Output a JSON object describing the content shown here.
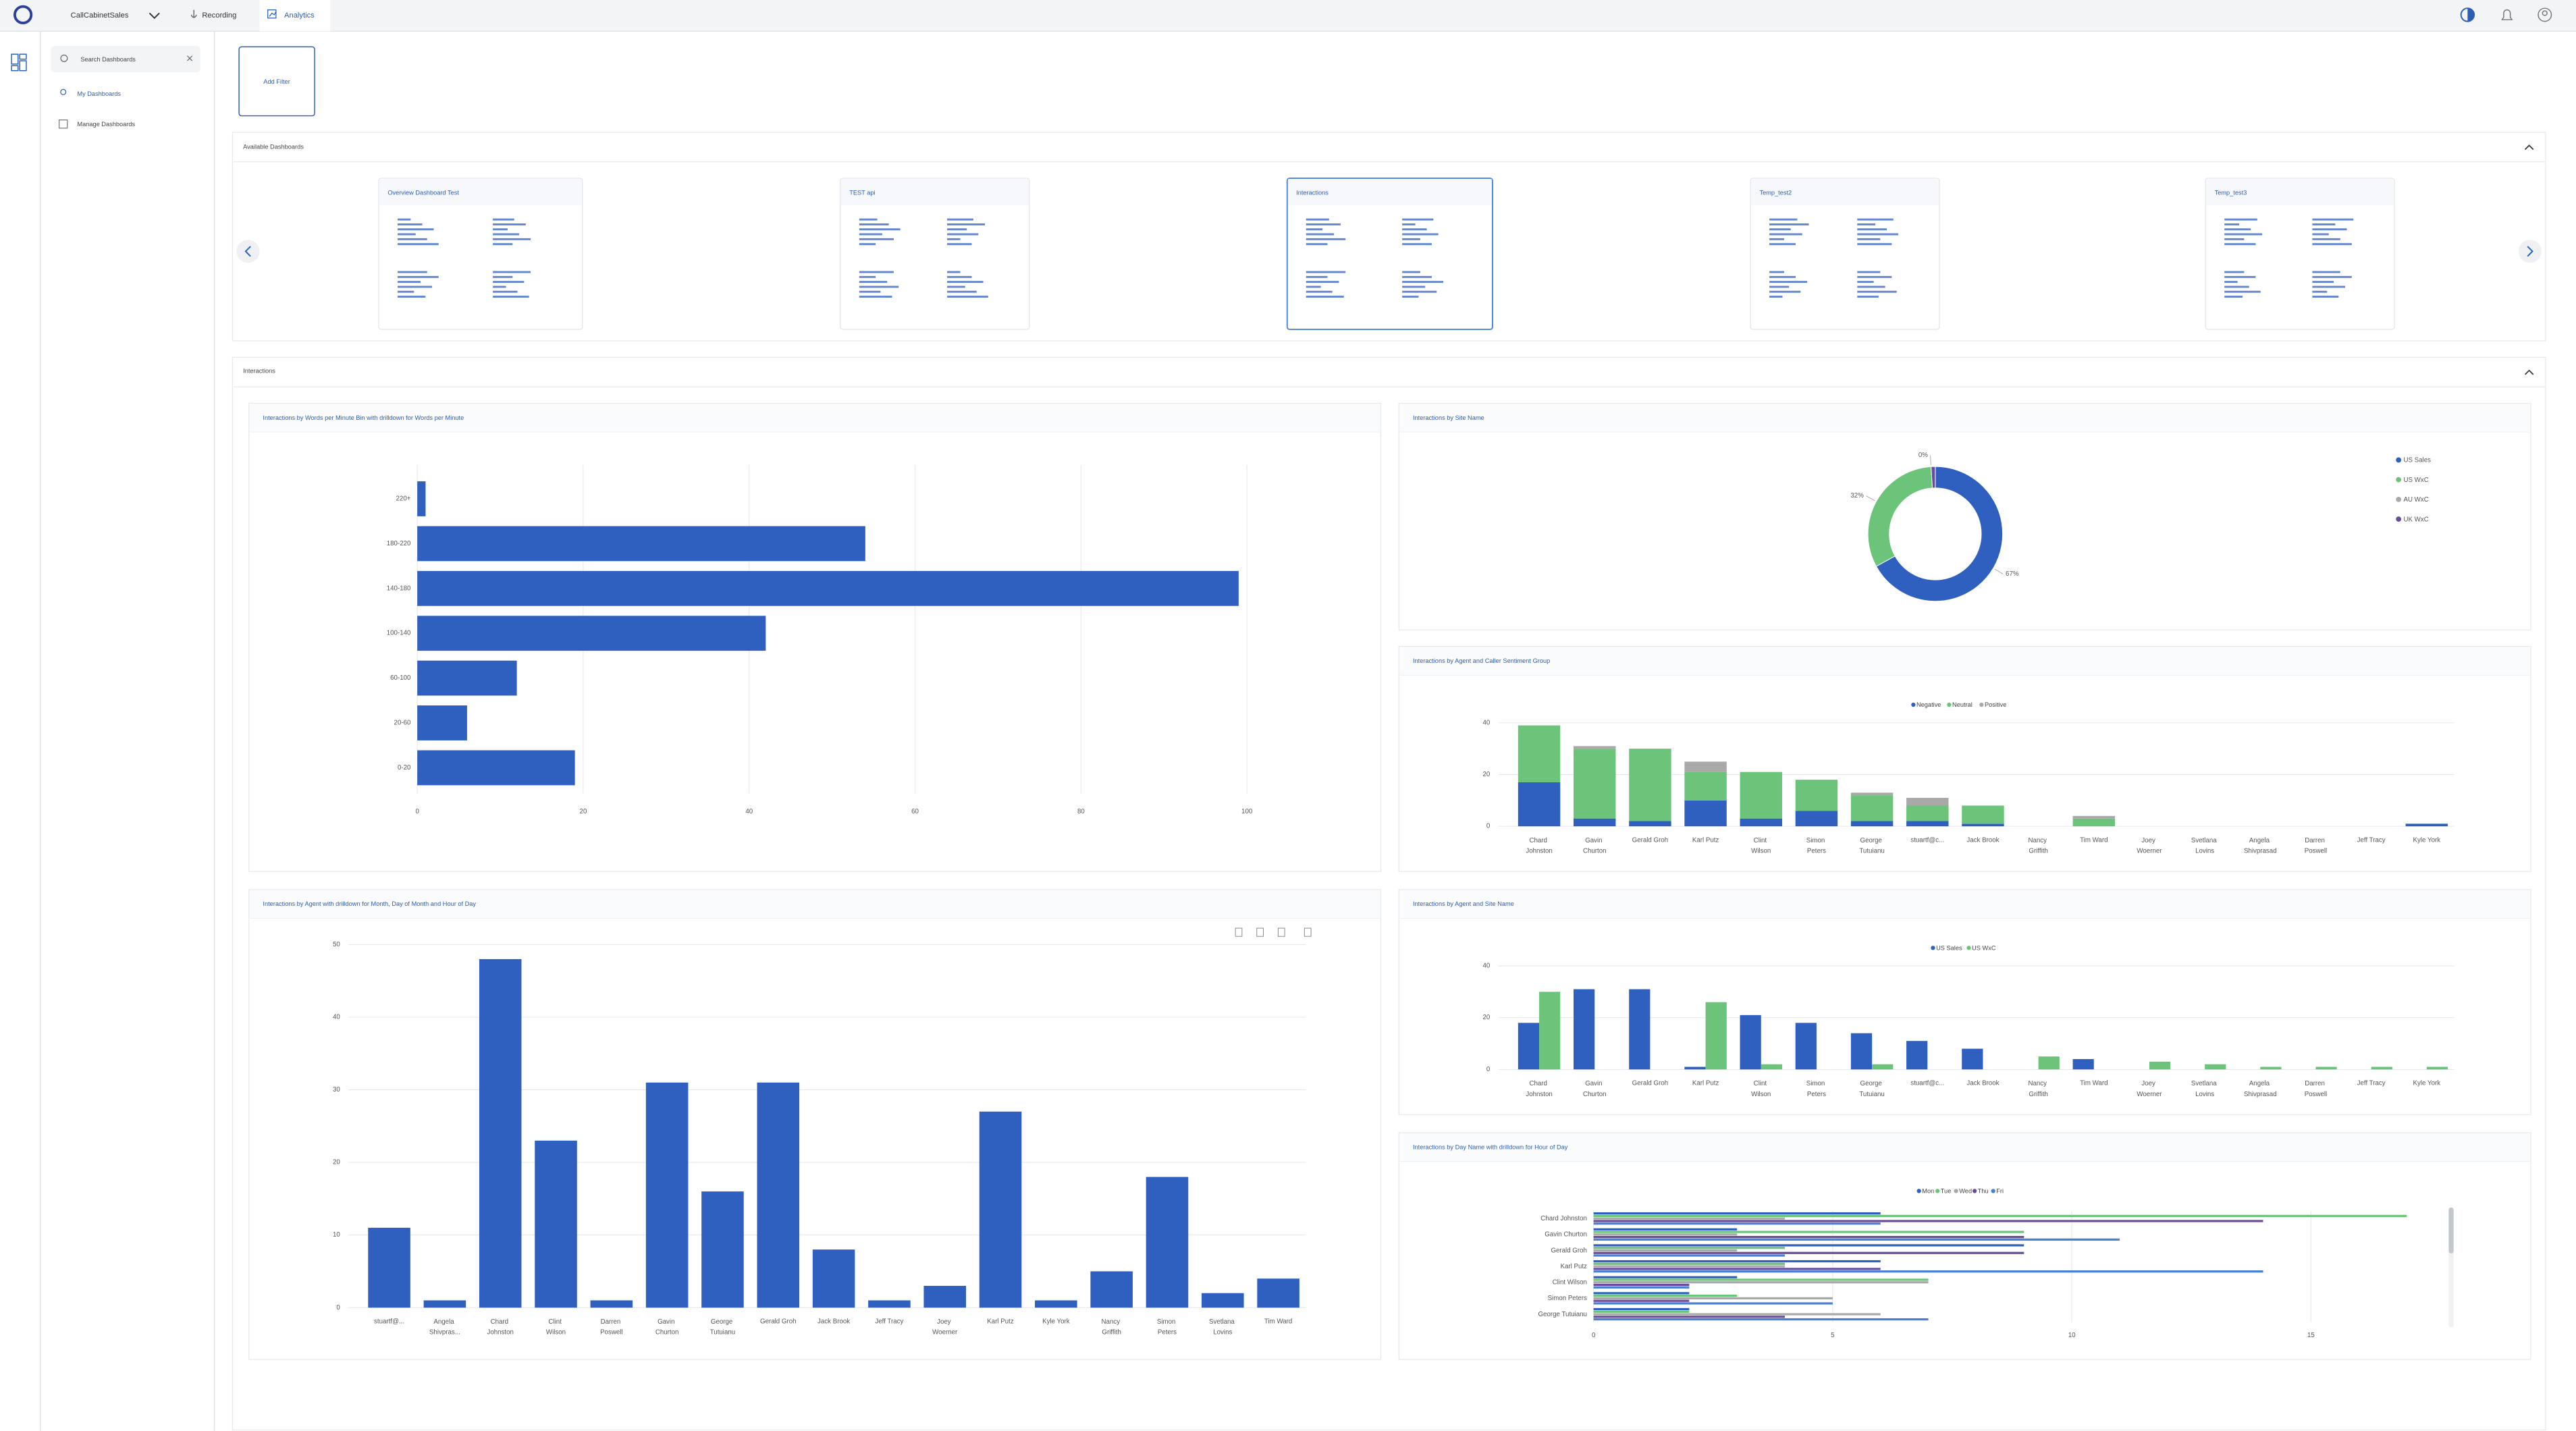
{
  "nav": {
    "app_name": "CallCabinetSales",
    "tabs": [
      "Recording",
      "Analytics"
    ]
  },
  "sidebar": {
    "search_placeholder": "Search Dashboards",
    "items": [
      "My Dashboards",
      "Manage Dashboards"
    ]
  },
  "toolbar": {
    "add_filter": "Add Filter"
  },
  "available_dashboards": {
    "title": "Available Dashboards",
    "cards": [
      "Overview Dashboard Test",
      "TEST api",
      "Interactions",
      "Temp_test2",
      "Temp_test3"
    ]
  },
  "section": {
    "title": "Interactions"
  },
  "chart_data": [
    {
      "type": "hbar",
      "title": "Interactions by Words per Minute Bin with drilldown for Words per Minute",
      "categories": [
        "220+",
        "180-220",
        "140-180",
        "100-140",
        "60-100",
        "20-60",
        "0-20"
      ],
      "values": [
        1,
        54,
        99,
        42,
        12,
        6,
        19
      ],
      "color": "#2f5fbf",
      "xlim": [
        0,
        100
      ],
      "xticks": [
        0,
        20,
        40,
        60,
        80,
        100
      ],
      "grid": true
    },
    {
      "type": "donut",
      "title": "Interactions by Site Name",
      "categories": [
        "US Sales",
        "US WxC",
        "AU WxC",
        "UK WxC"
      ],
      "values": [
        67,
        32,
        0,
        1
      ],
      "value_labels": [
        "67%",
        "32%",
        "0%",
        null
      ],
      "colors": [
        "#2f5fbf",
        "#6cc47a",
        "#a9a9a9",
        "#6a4c9c"
      ],
      "legend": "right"
    },
    {
      "type": "stacked_bar",
      "title": "Interactions by Agent and Caller Sentiment Group",
      "categories": [
        "Chard Johnston",
        "Gavin Churton",
        "Gerald Groh",
        "Karl Putz",
        "Clint Wilson",
        "Simon Peters",
        "George Tutuianu",
        "stuartf@c...",
        "Jack Brook",
        "Nancy Griffith",
        "Tim Ward",
        "Joey Woerner",
        "Svetlana Lovins",
        "Angela Shivprasad",
        "Darren Poswell",
        "Jeff Tracy",
        "Kyle York"
      ],
      "series": [
        {
          "name": "Negative",
          "color": "#2f5fbf",
          "values": [
            17,
            3,
            2,
            10,
            3,
            6,
            2,
            2,
            1,
            0,
            0,
            0,
            0,
            0,
            0,
            0,
            1
          ]
        },
        {
          "name": "Neutral",
          "color": "#6cc47a",
          "values": [
            22,
            27,
            28,
            11,
            18,
            12,
            10,
            6,
            7,
            0,
            3,
            0,
            0,
            0,
            0,
            0,
            0
          ]
        },
        {
          "name": "Positive",
          "color": "#a9a9a9",
          "values": [
            0,
            1,
            0,
            4,
            0,
            0,
            1,
            3,
            0,
            0,
            1,
            0,
            0,
            0,
            0,
            0,
            0
          ]
        }
      ],
      "ylim": [
        0,
        40
      ],
      "yticks": [
        0,
        20,
        40
      ],
      "grid": true,
      "legend": "top"
    },
    {
      "type": "grouped_bar",
      "title": "Interactions by Agent and Site Name",
      "categories": [
        "Chard Johnston",
        "Gavin Churton",
        "Gerald Groh",
        "Karl Putz",
        "Clint Wilson",
        "Simon Peters",
        "George Tutuianu",
        "stuartf@c...",
        "Jack Brook",
        "Nancy Griffith",
        "Tim Ward",
        "Joey Woerner",
        "Svetlana Lovins",
        "Angela Shivprasad",
        "Darren Poswell",
        "Jeff Tracy",
        "Kyle York"
      ],
      "series": [
        {
          "name": "US Sales",
          "color": "#2f5fbf",
          "values": [
            18,
            31,
            31,
            1,
            21,
            18,
            14,
            11,
            8,
            0,
            4,
            0,
            0,
            0,
            0,
            0,
            0
          ]
        },
        {
          "name": "US WxC",
          "color": "#6cc47a",
          "values": [
            30,
            0,
            0,
            26,
            2,
            0,
            2,
            0,
            0,
            5,
            0,
            3,
            2,
            1,
            1,
            1,
            1
          ]
        }
      ],
      "ylim": [
        0,
        40
      ],
      "yticks": [
        0,
        20,
        40
      ],
      "grid": true,
      "legend": "top"
    },
    {
      "type": "bar",
      "title": "Interactions by Agent with drilldown for Month, Day of Month and Hour of Day",
      "categories": [
        "stuartf@...",
        "Angela Shivpras...",
        "Chard Johnston",
        "Clint Wilson",
        "Darren Poswell",
        "Gavin Churton",
        "George Tutuianu",
        "Gerald Groh",
        "Jack Brook",
        "Jeff Tracy",
        "Joey Woerner",
        "Karl Putz",
        "Kyle York",
        "Nancy Griffith",
        "Simon Peters",
        "Svetlana Lovins",
        "Tim Ward"
      ],
      "values": [
        11,
        1,
        48,
        23,
        1,
        31,
        16,
        31,
        8,
        1,
        3,
        27,
        1,
        5,
        18,
        2,
        4
      ],
      "color": "#2f5fbf",
      "ylim": [
        0,
        50
      ],
      "yticks": [
        0,
        10,
        20,
        30,
        40,
        50
      ],
      "grid": true
    },
    {
      "type": "grouped_hbar",
      "title": "Interactions by Day Name with drilldown for Hour of Day",
      "categories": [
        "Chard Johnston",
        "Gavin Churton",
        "Gerald Groh",
        "Karl Putz",
        "Clint Wilson",
        "Simon Peters",
        "George Tutuianu"
      ],
      "series": [
        {
          "name": "Mon",
          "color": "#2f5fbf",
          "values": [
            6,
            3,
            9,
            6,
            3,
            2,
            2
          ]
        },
        {
          "name": "Tue",
          "color": "#6cc47a",
          "values": [
            17,
            9,
            4,
            4,
            7,
            3,
            2
          ]
        },
        {
          "name": "Wed",
          "color": "#a9a9a9",
          "values": [
            4,
            3,
            3,
            4,
            7,
            5,
            6
          ]
        },
        {
          "name": "Thu",
          "color": "#6a4c9c",
          "values": [
            14,
            9,
            9,
            6,
            2,
            2,
            4
          ]
        },
        {
          "name": "Fri",
          "color": "#4a7fd6",
          "values": [
            6,
            11,
            4,
            14,
            2,
            5,
            7
          ]
        }
      ],
      "xlim": [
        0,
        18
      ],
      "xticks": [
        0,
        5,
        10,
        15
      ],
      "grid": true,
      "legend": "top"
    }
  ]
}
